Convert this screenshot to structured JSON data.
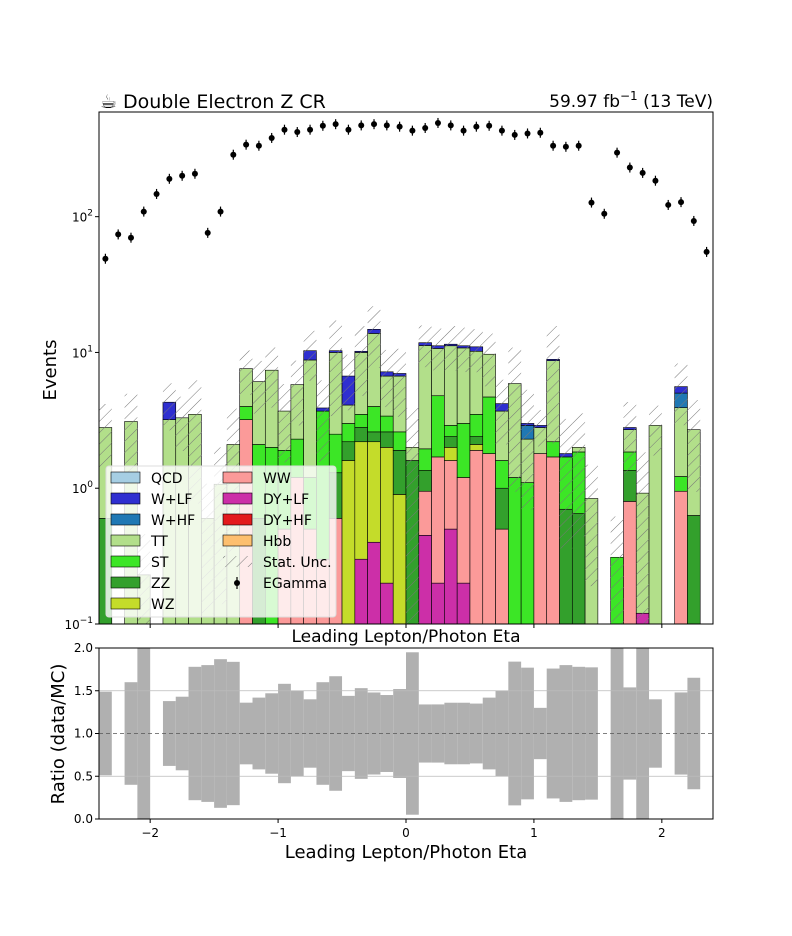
{
  "chart_data": [
    {
      "type": "stacked-histogram",
      "title": "Double Electron Z CR",
      "lumi_label": "59.97 fb",
      "lumi_exponent": "−1",
      "energy_label": "(13 TeV)",
      "y_label": "Events",
      "x_label": "Leading Lepton/Photon Eta",
      "log_y": true,
      "xlim": [
        -2.4,
        2.4
      ],
      "ylim": [
        0.1,
        590
      ],
      "xticks": [
        {
          "value": -2,
          "label": "−2"
        },
        {
          "value": -1,
          "label": "−1"
        },
        0,
        1,
        2
      ],
      "yticks": [
        {
          "value": 0.1,
          "label": "10",
          "exponent": "−1"
        },
        {
          "value": 1,
          "label": "10",
          "exponent": "0"
        },
        {
          "value": 10,
          "label": "10",
          "exponent": "1"
        },
        {
          "value": 100,
          "label": "10",
          "exponent": "2"
        }
      ],
      "bins": [
        -2.4,
        -2.3,
        -2.2,
        -2.1,
        -2.0,
        -1.9,
        -1.8,
        -1.7,
        -1.6,
        -1.5,
        -1.4,
        -1.3,
        -1.2,
        -1.1,
        -1.0,
        -0.9,
        -0.8,
        -0.7,
        -0.6,
        -0.5,
        -0.4,
        -0.3,
        -0.2,
        -0.1,
        0.0,
        0.1,
        0.2,
        0.3,
        0.4,
        0.5,
        0.6,
        0.7,
        0.8,
        0.9,
        1.0,
        1.1,
        1.2,
        1.3,
        1.4,
        1.5,
        1.6,
        1.7,
        1.8,
        1.9,
        2.0,
        2.1,
        2.2,
        2.3,
        2.4
      ],
      "series": [
        {
          "name": "QCD",
          "color": "#a6cee3",
          "values": [
            0,
            0,
            0,
            0,
            0,
            0,
            0,
            0,
            0,
            0,
            0,
            0,
            0,
            0,
            0,
            0,
            0,
            0,
            0,
            0,
            0,
            0,
            0,
            0,
            0,
            0,
            0,
            0,
            0,
            0,
            0,
            0,
            0,
            0,
            0,
            0,
            0,
            0,
            0,
            0,
            0,
            0,
            0,
            0,
            0,
            0,
            0,
            0
          ]
        },
        {
          "name": "W+LF",
          "color": "#2f2fd0",
          "values": [
            0,
            0,
            0,
            0,
            0,
            1.1,
            0,
            0,
            0,
            0,
            0,
            0,
            0,
            0,
            0,
            0,
            1.5,
            0.2,
            0.3,
            2.6,
            0.2,
            1.0,
            0.5,
            0.3,
            0,
            0.55,
            0.5,
            0.3,
            0.4,
            0.8,
            0,
            0.5,
            0,
            0.1,
            0.1,
            0.2,
            0.1,
            0,
            0,
            0,
            0,
            0.1,
            0,
            0,
            0,
            0.58,
            0,
            0
          ]
        },
        {
          "name": "W+HF",
          "color": "#1f78b4",
          "values": [
            0,
            0,
            0,
            0,
            0,
            0,
            0,
            0,
            0,
            0,
            0,
            0,
            0,
            0,
            0,
            0,
            0,
            0,
            0,
            0,
            0,
            0,
            0,
            0,
            0,
            0,
            0,
            0,
            0,
            0,
            0,
            0,
            0,
            0.6,
            0,
            0,
            0,
            0,
            0,
            0,
            0,
            0,
            0,
            0,
            0,
            1.1,
            0,
            0
          ]
        },
        {
          "name": "TT",
          "color": "#b2df8a",
          "values": [
            2.2,
            0,
            3.1,
            0.23,
            0,
            3.2,
            3.3,
            3.5,
            0.6,
            1.07,
            2.1,
            3.6,
            4.0,
            5.4,
            1.8,
            3.5,
            7.6,
            0,
            7.5,
            1.1,
            6.5,
            9.8,
            3.3,
            4.1,
            0.4,
            9.3,
            5.9,
            8.3,
            7.8,
            6.7,
            5.0,
            2.1,
            4.7,
            1.2,
            1.0,
            6.5,
            0,
            0.15,
            0.84,
            0,
            0,
            0.85,
            0.8,
            2.9,
            0,
            2.7,
            2.07,
            0
          ]
        },
        {
          "name": "ST",
          "color": "#3ce626",
          "values": [
            0,
            0,
            0,
            0,
            0,
            0,
            0,
            0,
            0,
            0,
            0,
            0.8,
            1.5,
            2.0,
            1.4,
            1.1,
            0.7,
            3.4,
            1.2,
            0.8,
            0.7,
            1.4,
            0.8,
            0.7,
            0,
            0.6,
            3.1,
            0.5,
            1.8,
            1.1,
            2.9,
            0.6,
            1.2,
            1.1,
            0,
            0.5,
            1.0,
            1.2,
            0,
            0,
            0.31,
            0.5,
            0,
            0,
            0,
            0.27,
            0,
            0
          ]
        },
        {
          "name": "ZZ",
          "color": "#33a02c",
          "values": [
            0.6,
            0,
            0,
            0,
            0,
            0,
            0,
            0,
            0,
            0,
            0,
            0,
            0.6,
            0,
            0,
            0,
            0,
            0,
            0.7,
            0.6,
            0.6,
            0.4,
            0.6,
            1.0,
            1.6,
            0.4,
            0,
            0.4,
            0,
            0.3,
            0,
            0.5,
            0,
            0,
            0,
            0,
            0.7,
            0.65,
            0,
            0,
            0,
            0.55,
            0,
            0,
            0,
            0,
            0.63,
            0
          ]
        },
        {
          "name": "WZ",
          "color": "#c4dc2a",
          "values": [
            0,
            0,
            0,
            0,
            0,
            0,
            0,
            0,
            0,
            0,
            0,
            0,
            0,
            0,
            0,
            0,
            0,
            0,
            0,
            1.6,
            1.9,
            1.8,
            1.8,
            0.8,
            0,
            0,
            0,
            0.4,
            0,
            0.2,
            0,
            0,
            0,
            0,
            0,
            0,
            0,
            0,
            0,
            0,
            0,
            0,
            0,
            0,
            0,
            0,
            0,
            0
          ]
        },
        {
          "name": "WW",
          "color": "#fb9a99",
          "values": [
            0,
            0,
            0,
            0,
            0,
            0,
            0,
            0,
            0,
            0,
            0,
            3.2,
            0,
            0,
            0.5,
            1.2,
            0.5,
            0.3,
            0.6,
            0,
            0,
            0,
            0,
            0,
            0,
            0.5,
            1.5,
            1.1,
            1.0,
            1.8,
            1.7,
            0.4,
            0,
            0,
            1.8,
            1.7,
            0,
            0,
            0,
            0,
            0,
            0.8,
            0,
            0,
            0,
            0.95,
            0,
            0
          ]
        },
        {
          "name": "DY+LF",
          "color": "#cc2fa8",
          "values": [
            0,
            0,
            0,
            0,
            0,
            0,
            0,
            0,
            0,
            0,
            0,
            0,
            0,
            0,
            0,
            0,
            0,
            0,
            0,
            0,
            0.3,
            0.4,
            0.2,
            0.1,
            0,
            0.45,
            0.2,
            0.5,
            0.2,
            0.1,
            0.1,
            0.1,
            0,
            0,
            0,
            0,
            0,
            0,
            0,
            0,
            0,
            0,
            0.12,
            0,
            0,
            0,
            0,
            0
          ]
        },
        {
          "name": "DY+HF",
          "color": "#e31a1c",
          "values": [
            0,
            0,
            0,
            0,
            0,
            0,
            0,
            0,
            0,
            0,
            0,
            0,
            0,
            0,
            0,
            0,
            0,
            0,
            0,
            0,
            0,
            0,
            0,
            0,
            0,
            0,
            0,
            0,
            0,
            0,
            0,
            0,
            0,
            0,
            0,
            0,
            0,
            0,
            0,
            0,
            0,
            0,
            0,
            0,
            0,
            0,
            0,
            0
          ]
        },
        {
          "name": "Hbb",
          "color": "#fdbf6f",
          "values": [
            0,
            0,
            0,
            0,
            0,
            0,
            0,
            0,
            0,
            0,
            0,
            0,
            0,
            0,
            0,
            0,
            0,
            0,
            0,
            0,
            0,
            0,
            0,
            0,
            0,
            0,
            0,
            0,
            0,
            0,
            0,
            0,
            0,
            0,
            0,
            0,
            0,
            0,
            0,
            0,
            0,
            0,
            0,
            0,
            0,
            0,
            0,
            0
          ]
        }
      ],
      "stat_unc": {
        "name": "Stat. Unc.",
        "values": [
          1.37,
          0,
          1.86,
          0.23,
          0,
          1.63,
          1.42,
          2.73,
          0.48,
          0.93,
          1.76,
          2.74,
          2.56,
          3.48,
          2.15,
          2.9,
          4.12,
          2.34,
          6.9,
          2.95,
          5.41,
          7.1,
          3.24,
          3.64,
          1.9,
          4.01,
          3.81,
          4.14,
          4.03,
          3.85,
          4.07,
          2.1,
          4.96,
          2.31,
          0.87,
          6.76,
          1.44,
          1.56,
          0.65,
          0,
          0.31,
          1.51,
          0.92,
          1.16,
          0,
          2.69,
          1.76,
          0
        ]
      },
      "data": {
        "name": "EGamma",
        "color": "#000000",
        "values": [
          49,
          74,
          70,
          109,
          147,
          190,
          200,
          207,
          76,
          109,
          286,
          339,
          333,
          380,
          437,
          420,
          437,
          467,
          480,
          437,
          470,
          480,
          470,
          460,
          430,
          450,
          490,
          470,
          430,
          460,
          467,
          430,
          400,
          410,
          415,
          333,
          327,
          333,
          127,
          105,
          296,
          230,
          210,
          184,
          122,
          128,
          93,
          55
        ]
      }
    },
    {
      "type": "ratio",
      "y_label": "Ratio (data/MC)",
      "x_label": "Leading Lepton/Photon Eta",
      "ylim": [
        0,
        2
      ],
      "yticks": [
        {
          "value": 0,
          "label": "0.0"
        },
        {
          "value": 0.5,
          "label": "0.5"
        },
        {
          "value": 1,
          "label": "1.0"
        },
        {
          "value": 1.5,
          "label": "1.5"
        },
        {
          "value": 2,
          "label": "2.0"
        }
      ],
      "reference_line": 1,
      "band_color": "#b0b0b0",
      "grid": true
    }
  ]
}
